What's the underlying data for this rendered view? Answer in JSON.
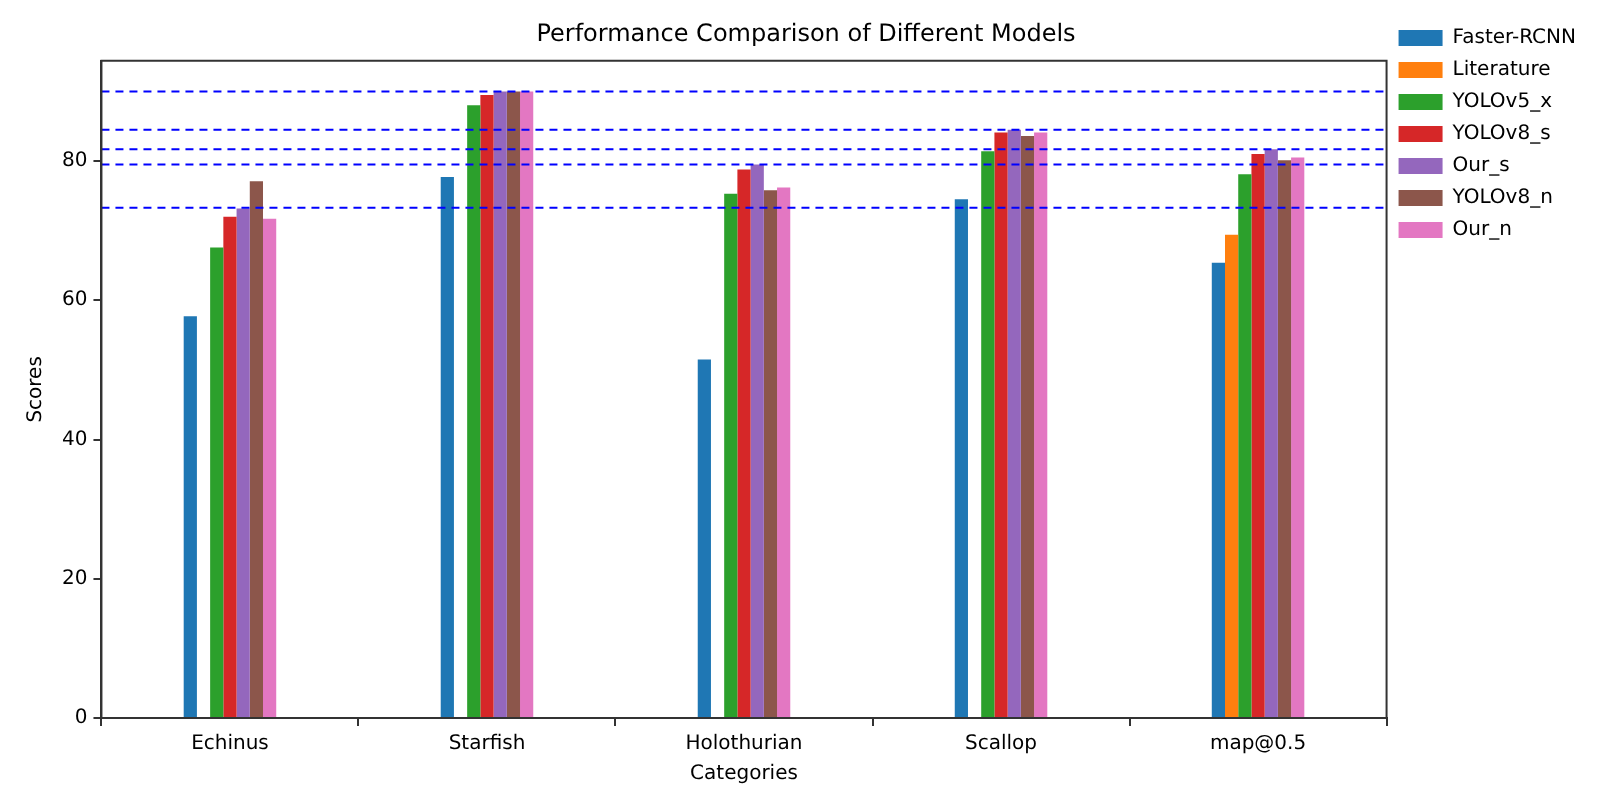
{
  "chart_data": {
    "type": "bar",
    "title": "Performance Comparison of Different Models",
    "xlabel": "Categories",
    "ylabel": "Scores",
    "categories": [
      "Echinus",
      "Starfish",
      "Holothurian",
      "Scallop",
      "map@0.5"
    ],
    "series": [
      {
        "name": "Faster-RCNN",
        "color": "#1f77b4",
        "values": [
          57.7,
          77.7,
          51.5,
          74.5,
          65.4
        ]
      },
      {
        "name": "Literature",
        "color": "#ff7f0e",
        "values": [
          null,
          null,
          null,
          null,
          69.4
        ]
      },
      {
        "name": "YOLOv5_x",
        "color": "#2ca02c",
        "values": [
          67.6,
          88.0,
          75.3,
          81.4,
          78.1
        ]
      },
      {
        "name": "YOLOv8_s",
        "color": "#d62728",
        "values": [
          72.0,
          89.5,
          78.8,
          84.1,
          81.0
        ]
      },
      {
        "name": "Our_s",
        "color": "#9467bd",
        "values": [
          73.2,
          90.0,
          79.5,
          84.5,
          81.7
        ]
      },
      {
        "name": "YOLOv8_n",
        "color": "#8c564b",
        "values": [
          77.1,
          90.0,
          75.8,
          83.6,
          80.1
        ]
      },
      {
        "name": "Our_n",
        "color": "#e377c2",
        "values": [
          71.7,
          90.0,
          76.2,
          84.1,
          80.5
        ]
      }
    ],
    "ylim": [
      0,
      94.4
    ],
    "yticks": [
      0,
      20,
      40,
      60,
      80
    ],
    "grid": false,
    "legend": "top right",
    "ref_lines": [
      {
        "axis": "y",
        "value": 90.0,
        "color": "#0000ff",
        "line_style": "dashed"
      },
      {
        "axis": "y",
        "value": 84.5,
        "color": "#0000ff",
        "line_style": "dashed"
      },
      {
        "axis": "y",
        "value": 81.7,
        "color": "#0000ff",
        "line_style": "dashed"
      },
      {
        "axis": "y",
        "value": 79.5,
        "color": "#0000ff",
        "line_style": "dashed"
      },
      {
        "axis": "y",
        "value": 73.3,
        "color": "#0000ff",
        "line_style": "dashed"
      }
    ]
  }
}
